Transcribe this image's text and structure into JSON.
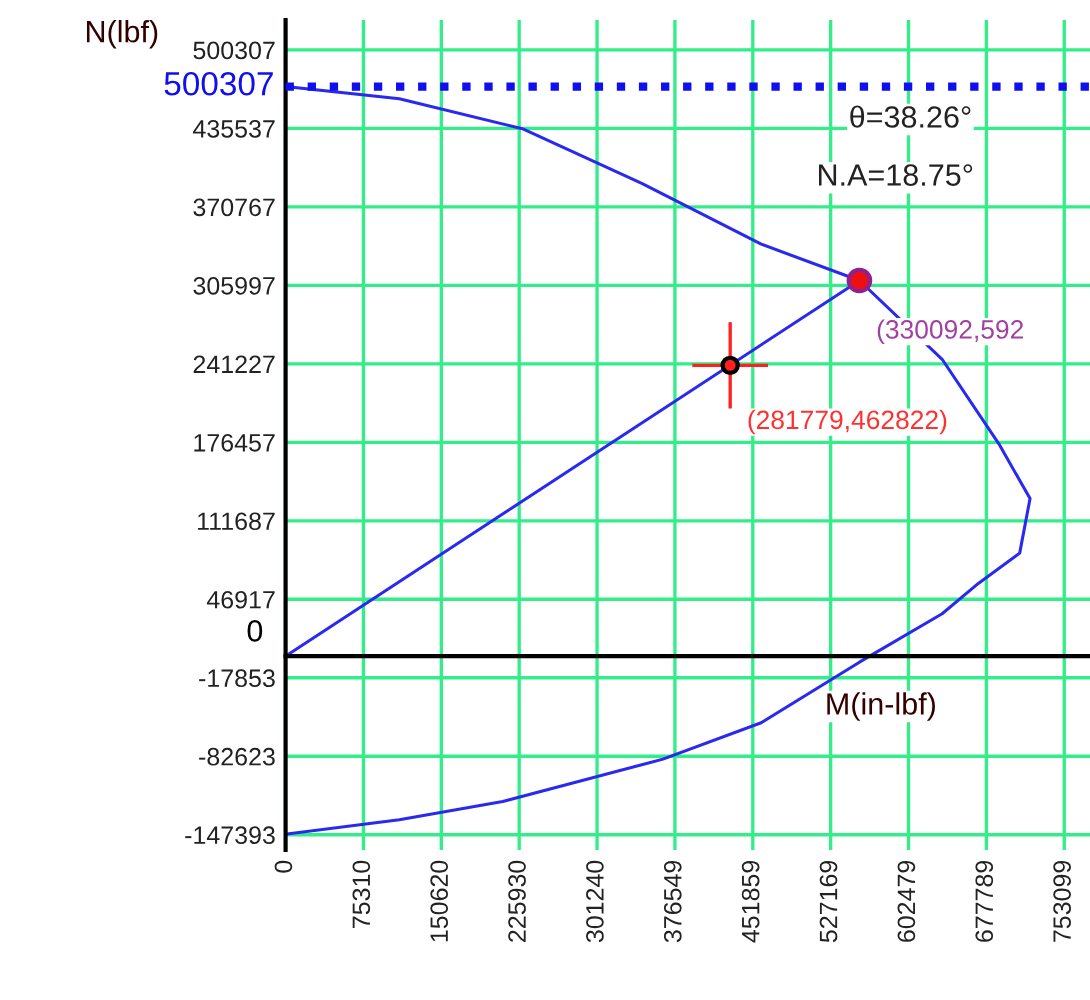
{
  "chart_data": {
    "type": "line",
    "xlabel": "M(in-lbf)",
    "ylabel": "N(lbf)",
    "xlim": [
      0,
      778000
    ],
    "ylim": [
      -160000,
      525000
    ],
    "xticks": [
      0,
      75310,
      150620,
      225930,
      301240,
      376549,
      451859,
      527169,
      602479,
      677789,
      753099
    ],
    "yticks": [
      500307,
      435537,
      370767,
      305997,
      241227,
      176457,
      111687,
      46917,
      -17853,
      -82623,
      -147393
    ],
    "grid": true,
    "marker": "none",
    "line_style": "solid",
    "series": [
      {
        "color": "#2a2aee",
        "x": [
          0,
          110000,
          230000,
          345000,
          460000,
          555000,
          635000,
          690000,
          720000,
          710000,
          670000,
          635000,
          555000,
          460000,
          365000,
          210000,
          110000,
          0
        ],
        "values": [
          470000,
          460000,
          435000,
          390000,
          340000,
          310000,
          245000,
          175000,
          130000,
          85000,
          60000,
          35000,
          -5000,
          -55000,
          -85000,
          -120000,
          -135000,
          -147000
        ]
      },
      {
        "color": "#2a2aee",
        "x": [
          0,
          555000
        ],
        "values": [
          0,
          310000
        ]
      },
      {
        "type": "scatter",
        "marker": "circle",
        "color": "#ff2020",
        "x": [
          430000
        ],
        "values": [
          240000
        ]
      },
      {
        "type": "scatter",
        "marker": "circle",
        "color": "#ee1010",
        "x": [
          555000
        ],
        "values": [
          310000
        ]
      }
    ],
    "ref_lines": [
      {
        "axis": "y",
        "value": 470000,
        "color": "#1010ee",
        "line_style": "dotted"
      },
      {
        "axis": "y",
        "value": 0,
        "color": "#000000",
        "line_style": "solid"
      }
    ],
    "annotations": [
      {
        "text": "(281779,462822)",
        "x": 430000,
        "y": 240000
      },
      {
        "text": "(330092,592",
        "x": 555000,
        "y": 310000
      },
      "θ=38.26°",
      "N.A=18.75°",
      {
        "text": "0",
        "x": 0,
        "y": 0
      },
      {
        "text": "500307",
        "x": 0,
        "y": 470000
      }
    ]
  }
}
